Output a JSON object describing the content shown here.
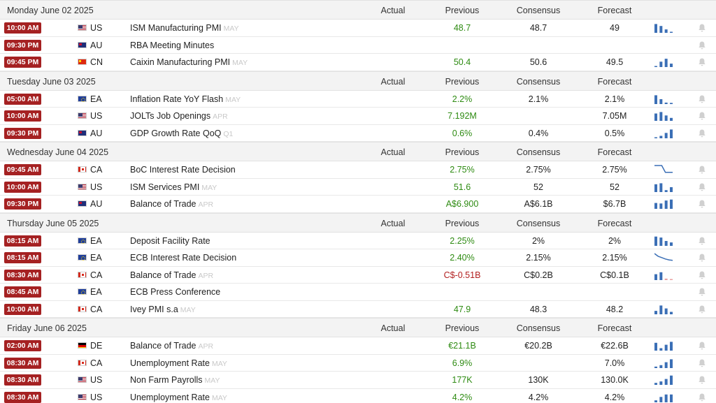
{
  "columns": {
    "actual": "Actual",
    "previous": "Previous",
    "consensus": "Consensus",
    "forecast": "Forecast"
  },
  "colors": {
    "time_badge": "#a52122",
    "positive": "#2e8b12",
    "negative": "#b21f1f",
    "spark_bar": "#3b6fb6",
    "spark_line": "#3b6fb6"
  },
  "days": [
    {
      "date": "Monday June 02 2025",
      "events": [
        {
          "time": "10:00 AM",
          "flag": "us",
          "country": "US",
          "name": "ISM Manufacturing PMI",
          "ref": "MAY",
          "actual": "",
          "previous": "48.7",
          "consensus": "48.7",
          "forecast": "49",
          "spark": {
            "type": "bar",
            "values": [
              0.9,
              0.7,
              0.35,
              0.1
            ]
          }
        },
        {
          "time": "09:30 PM",
          "flag": "au",
          "country": "AU",
          "name": "RBA Meeting Minutes",
          "ref": "",
          "actual": "",
          "previous": "",
          "consensus": "",
          "forecast": "",
          "spark": null
        },
        {
          "time": "09:45 PM",
          "flag": "cn",
          "country": "CN",
          "name": "Caixin Manufacturing PMI",
          "ref": "MAY",
          "actual": "",
          "previous": "50.4",
          "consensus": "50.6",
          "forecast": "49.5",
          "spark": {
            "type": "bar",
            "values": [
              0.1,
              0.55,
              0.85,
              0.35
            ]
          }
        }
      ]
    },
    {
      "date": "Tuesday June 03 2025",
      "events": [
        {
          "time": "05:00 AM",
          "flag": "ea",
          "country": "EA",
          "name": "Inflation Rate YoY Flash",
          "ref": "MAY",
          "actual": "",
          "previous": "2.2%",
          "consensus": "2.1%",
          "forecast": "2.1%",
          "spark": {
            "type": "bar",
            "values": [
              0.9,
              0.5,
              0.15,
              0.12
            ]
          }
        },
        {
          "time": "10:00 AM",
          "flag": "us",
          "country": "US",
          "name": "JOLTs Job Openings",
          "ref": "APR",
          "actual": "",
          "previous": "7.192M",
          "consensus": "",
          "forecast": "7.05M",
          "spark": {
            "type": "bar",
            "values": [
              0.75,
              0.9,
              0.55,
              0.3
            ]
          }
        },
        {
          "time": "09:30 PM",
          "flag": "au",
          "country": "AU",
          "name": "GDP Growth Rate QoQ",
          "ref": "Q1",
          "actual": "",
          "previous": "0.6%",
          "consensus": "0.4%",
          "forecast": "0.5%",
          "spark": {
            "type": "bar",
            "values": [
              0.1,
              0.25,
              0.55,
              0.9
            ]
          }
        }
      ]
    },
    {
      "date": "Wednesday June 04 2025",
      "events": [
        {
          "time": "09:45 AM",
          "flag": "ca",
          "country": "CA",
          "name": "BoC Interest Rate Decision",
          "ref": "",
          "actual": "",
          "previous": "2.75%",
          "consensus": "2.75%",
          "forecast": "2.75%",
          "spark": {
            "type": "line",
            "values": [
              1,
              1,
              1,
              0.25,
              0.25,
              0.25
            ]
          }
        },
        {
          "time": "10:00 AM",
          "flag": "us",
          "country": "US",
          "name": "ISM Services PMI",
          "ref": "MAY",
          "actual": "",
          "previous": "51.6",
          "consensus": "52",
          "forecast": "52",
          "spark": {
            "type": "bar",
            "values": [
              0.8,
              0.9,
              0.2,
              0.5
            ]
          }
        },
        {
          "time": "09:30 PM",
          "flag": "au",
          "country": "AU",
          "name": "Balance of Trade",
          "ref": "APR",
          "actual": "",
          "previous": "A$6.900",
          "consensus": "A$6.1B",
          "forecast": "$6.7B",
          "spark": {
            "type": "bar",
            "values": [
              0.6,
              0.55,
              0.85,
              0.95
            ]
          }
        }
      ]
    },
    {
      "date": "Thursday June 05 2025",
      "events": [
        {
          "time": "08:15 AM",
          "flag": "ea",
          "country": "EA",
          "name": "Deposit Facility Rate",
          "ref": "",
          "actual": "",
          "previous": "2.25%",
          "consensus": "2%",
          "forecast": "2%",
          "spark": {
            "type": "bar",
            "values": [
              0.95,
              0.85,
              0.5,
              0.35
            ]
          }
        },
        {
          "time": "08:15 AM",
          "flag": "ea",
          "country": "EA",
          "name": "ECB Interest Rate Decision",
          "ref": "",
          "actual": "",
          "previous": "2.40%",
          "consensus": "2.15%",
          "forecast": "2.15%",
          "spark": {
            "type": "line",
            "values": [
              1,
              0.7,
              0.55,
              0.4,
              0.3,
              0.25
            ]
          }
        },
        {
          "time": "08:30 AM",
          "flag": "ca",
          "country": "CA",
          "name": "Balance of Trade",
          "ref": "APR",
          "actual": "",
          "previous": "C$-0.51B",
          "consensus": "C$0.2B",
          "forecast": "C$0.1B",
          "negative": true,
          "spark": {
            "type": "bar",
            "values": [
              0.6,
              0.8,
              0.15,
              0.1
            ]
          }
        },
        {
          "time": "08:45 AM",
          "flag": "ea",
          "country": "EA",
          "name": "ECB Press Conference",
          "ref": "",
          "actual": "",
          "previous": "",
          "consensus": "",
          "forecast": "",
          "spark": null
        },
        {
          "time": "10:00 AM",
          "flag": "ca",
          "country": "CA",
          "name": "Ivey PMI s.a",
          "ref": "MAY",
          "actual": "",
          "previous": "47.9",
          "consensus": "48.3",
          "forecast": "48.2",
          "spark": {
            "type": "bar",
            "values": [
              0.35,
              0.9,
              0.6,
              0.25
            ]
          }
        }
      ]
    },
    {
      "date": "Friday June 06 2025",
      "events": [
        {
          "time": "02:00 AM",
          "flag": "de",
          "country": "DE",
          "name": "Balance of Trade",
          "ref": "APR",
          "actual": "",
          "previous": "€21.1B",
          "consensus": "€20.2B",
          "forecast": "€22.6B",
          "spark": {
            "type": "bar",
            "values": [
              0.8,
              0.25,
              0.6,
              0.9
            ]
          }
        },
        {
          "time": "08:30 AM",
          "flag": "ca",
          "country": "CA",
          "name": "Unemployment Rate",
          "ref": "MAY",
          "actual": "",
          "previous": "6.9%",
          "consensus": "",
          "forecast": "7.0%",
          "spark": {
            "type": "bar",
            "values": [
              0.15,
              0.3,
              0.6,
              0.9
            ]
          }
        },
        {
          "time": "08:30 AM",
          "flag": "us",
          "country": "US",
          "name": "Non Farm Payrolls",
          "ref": "MAY",
          "actual": "",
          "previous": "177K",
          "consensus": "130K",
          "forecast": "130.0K",
          "spark": {
            "type": "bar",
            "values": [
              0.2,
              0.35,
              0.6,
              0.95
            ]
          }
        },
        {
          "time": "08:30 AM",
          "flag": "us",
          "country": "US",
          "name": "Unemployment Rate",
          "ref": "MAY",
          "actual": "",
          "previous": "4.2%",
          "consensus": "4.2%",
          "forecast": "4.2%",
          "spark": {
            "type": "bar",
            "values": [
              0.2,
              0.55,
              0.8,
              0.8
            ]
          }
        }
      ]
    }
  ]
}
